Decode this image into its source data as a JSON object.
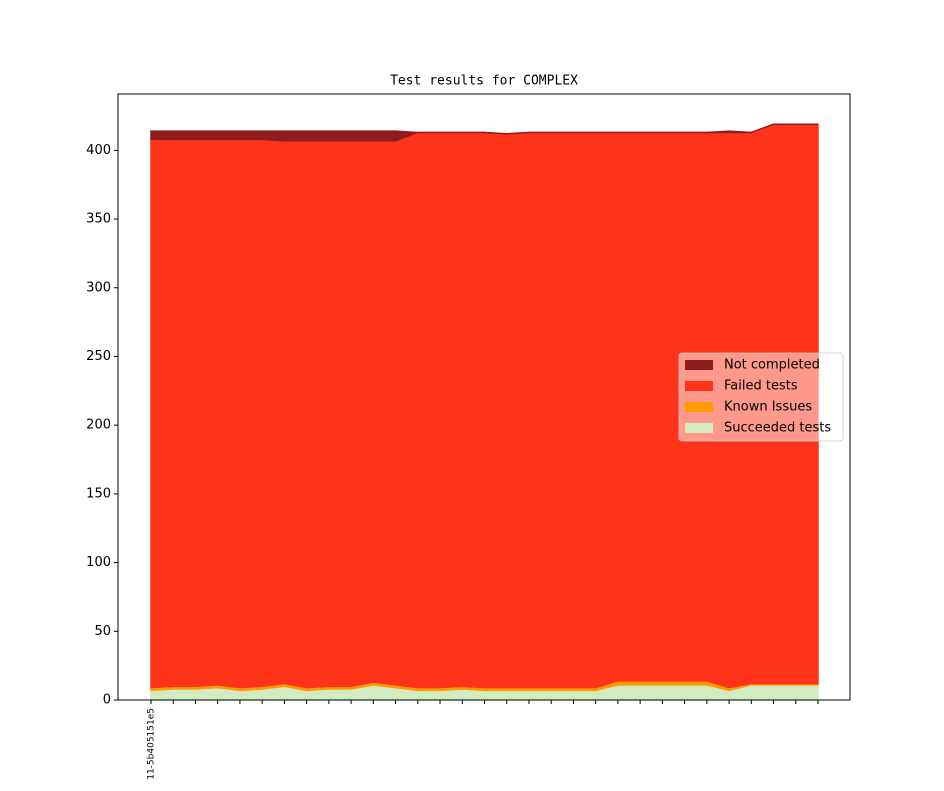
{
  "chart_data": {
    "type": "stacked-area",
    "title": "Test results for COMPLEX",
    "categories": [
      "11-5b405151e5",
      null,
      null,
      null,
      null,
      null,
      null,
      null,
      null,
      null,
      null,
      null,
      null,
      null,
      null,
      null,
      null,
      null,
      null,
      null,
      null,
      null,
      null,
      null,
      null,
      null,
      null,
      null,
      null,
      null,
      null
    ],
    "series": [
      {
        "name": "Not completed",
        "color": "#8f1d1d",
        "values": [
          6,
          6,
          6,
          6,
          6,
          6,
          7,
          7,
          7,
          7,
          7,
          7,
          0,
          0,
          0,
          0,
          0,
          0,
          0,
          0,
          0,
          0,
          0,
          0,
          0,
          0,
          1,
          0,
          0,
          0,
          0
        ]
      },
      {
        "name": "Failed tests",
        "color": "#ff3319",
        "values": [
          399,
          398,
          398,
          397,
          399,
          398,
          395,
          398,
          397,
          397,
          394,
          396,
          404,
          404,
          403,
          404,
          403,
          404,
          404,
          404,
          404,
          399,
          399,
          399,
          399,
          399,
          404,
          401,
          407,
          407,
          407
        ]
      },
      {
        "name": "Known Issues",
        "color": "#ff9900",
        "values": [
          2,
          2,
          2,
          2,
          2,
          2,
          2,
          2,
          2,
          2,
          2,
          2,
          2,
          2,
          2,
          2,
          2,
          2,
          2,
          2,
          2,
          3,
          3,
          3,
          3,
          3,
          2,
          1,
          1,
          1,
          1
        ]
      },
      {
        "name": "Succeeded tests",
        "color": "#d0ecc0",
        "values": [
          7,
          8,
          8,
          9,
          7,
          8,
          10,
          7,
          8,
          8,
          11,
          9,
          7,
          7,
          8,
          7,
          7,
          7,
          7,
          7,
          7,
          11,
          11,
          11,
          11,
          11,
          7,
          11,
          11,
          11,
          11
        ]
      }
    ],
    "ylim": [
      0,
      441
    ],
    "yticks": [
      0,
      50,
      100,
      150,
      200,
      250,
      300,
      350,
      400
    ],
    "legend": "center right",
    "grid": false
  }
}
